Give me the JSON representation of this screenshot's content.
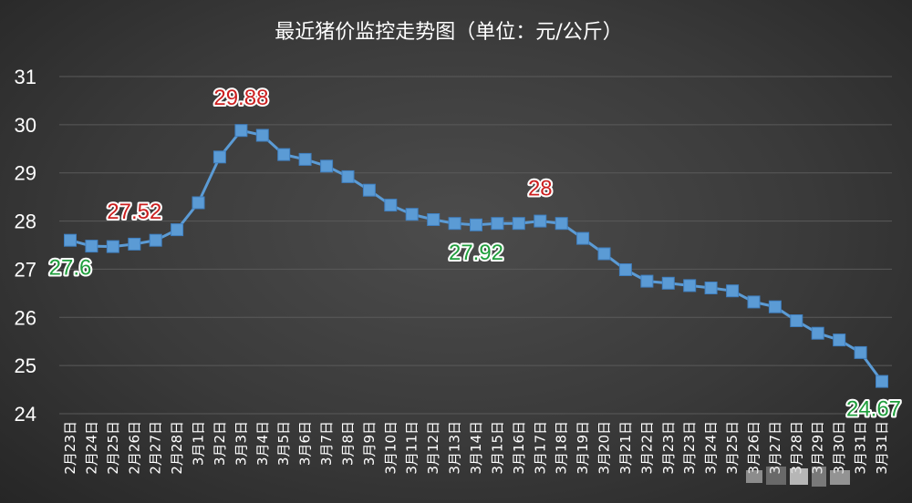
{
  "chart_data": {
    "type": "line",
    "title": "最近猪价监控走势图（单位：元/公斤）",
    "xlabel": "",
    "ylabel": "",
    "ylim": [
      24,
      31
    ],
    "yticks": [
      24,
      25,
      26,
      27,
      28,
      29,
      30,
      31
    ],
    "grid": true,
    "legend": "none",
    "categories": [
      "2月23日",
      "2月24日",
      "2月25日",
      "2月26日",
      "2月27日",
      "2月28日",
      "3月1日",
      "3月2日",
      "3月3日",
      "3月4日",
      "3月5日",
      "3月6日",
      "3月7日",
      "3月8日",
      "3月9日",
      "3月10日",
      "3月11日",
      "3月12日",
      "3月13日",
      "3月14日",
      "3月15日",
      "3月16日",
      "3月17日",
      "3月18日",
      "3月19日",
      "3月20日",
      "3月21日",
      "3月22日",
      "3月23日",
      "3月23日",
      "3月24日",
      "3月25日",
      "3月26日",
      "3月27日",
      "3月28日",
      "3月29日",
      "3月30日",
      "3月31日",
      "3月31日"
    ],
    "series": [
      {
        "values": [
          27.6,
          27.48,
          27.47,
          27.52,
          27.6,
          27.82,
          28.38,
          29.33,
          29.88,
          29.78,
          29.38,
          29.28,
          29.14,
          28.92,
          28.64,
          28.33,
          28.14,
          28.03,
          27.95,
          27.92,
          27.95,
          27.95,
          28.0,
          27.95,
          27.64,
          27.32,
          26.99,
          26.75,
          26.71,
          26.66,
          26.61,
          26.55,
          26.32,
          26.22,
          25.93,
          25.67,
          25.53,
          25.27,
          24.67
        ],
        "color": "#5b9bd5"
      }
    ],
    "annotations": [
      {
        "index": 0,
        "text": "27.6",
        "color": "#1f9e3c",
        "position": "below"
      },
      {
        "index": 3,
        "text": "27.52",
        "color": "#cc1f1f",
        "position": "above"
      },
      {
        "index": 8,
        "text": "29.88",
        "color": "#cc1f1f",
        "position": "above"
      },
      {
        "index": 19,
        "text": "27.92",
        "color": "#1f9e3c",
        "position": "below"
      },
      {
        "index": 22,
        "text": "28",
        "color": "#cc1f1f",
        "position": "above"
      },
      {
        "index": 38,
        "text": "24.67",
        "color": "#1f9e3c",
        "position": "below"
      }
    ]
  }
}
